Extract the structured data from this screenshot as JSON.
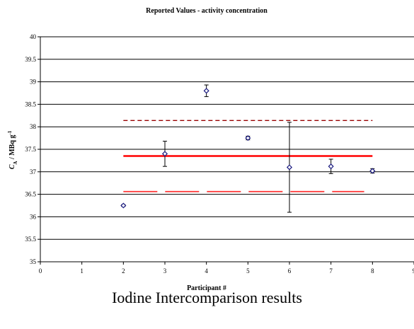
{
  "caption": "Iodine Intercomparison results",
  "chart_data": {
    "type": "scatter",
    "title": "Reported Values - activity concentration",
    "xlabel": "Participant #",
    "ylabel": "C_A / MBq g^-1",
    "ylabel_parts": {
      "c": "C",
      "sub": "A",
      "mid": " / MBq g",
      "sup": "-1"
    },
    "xlim": [
      0,
      9
    ],
    "ylim": [
      35,
      40
    ],
    "x_ticks": [
      0,
      1,
      2,
      3,
      4,
      5,
      6,
      7,
      8,
      9
    ],
    "y_ticks": [
      35,
      35.5,
      36,
      36.5,
      37,
      37.5,
      38,
      38.5,
      39,
      39.5,
      40
    ],
    "y_tick_labels": [
      "35",
      "35.5",
      "36",
      "36.5",
      "37",
      "37.5",
      "38",
      "38.5",
      "39",
      "39.5",
      "40"
    ],
    "grid": "horizontal",
    "marker_color": "#1a1a80",
    "series": [
      {
        "points": [
          {
            "x": 2,
            "y": 36.25,
            "err": 0.02
          },
          {
            "x": 3,
            "y": 37.4,
            "err": 0.28
          },
          {
            "x": 4,
            "y": 38.8,
            "err": 0.13
          },
          {
            "x": 5,
            "y": 37.75,
            "err": 0.04
          },
          {
            "x": 6,
            "y": 37.1,
            "err": 1.0
          },
          {
            "x": 7,
            "y": 37.12,
            "err": 0.16
          },
          {
            "x": 8,
            "y": 37.02,
            "err": 0.05
          }
        ]
      }
    ],
    "reference_lines": [
      {
        "y": 37.35,
        "x_range": [
          2,
          8
        ],
        "style": "solid",
        "color": "#ff0000"
      },
      {
        "y": 38.14,
        "x_range": [
          2,
          8
        ],
        "style": "dashed",
        "color": "#990000"
      },
      {
        "y": 36.56,
        "x_range": [
          2,
          7.8
        ],
        "style": "long-dash",
        "color": "#ff3333"
      }
    ]
  }
}
